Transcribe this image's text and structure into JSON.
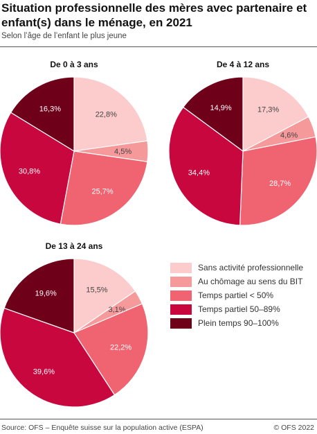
{
  "title": "Situation professionnelle des mères avec partenaire et enfant(s) dans le ménage, en 2021",
  "subtitle": "Selon l’âge de l’enfant le plus jeune",
  "source": "Source: OFS – Enquête suisse sur la population active (ESPA)",
  "copyright": "© OFS 2022",
  "colors": [
    "#fccbcb",
    "#f6999a",
    "#ef6470",
    "#c8073f",
    "#6e0019"
  ],
  "chart_data": [
    {
      "type": "pie",
      "title": "De 0 à 3 ans",
      "categories": [
        "Sans activité professionnelle",
        "Au chômage au sens du BIT",
        "Temps partiel < 50%",
        "Temps partiel 50–89%",
        "Plein temps 90–100%"
      ],
      "values": [
        22.8,
        4.5,
        25.7,
        30.8,
        16.3
      ],
      "labels": [
        "22,8%",
        "4,5%",
        "25,7%",
        "30,8%",
        "16,3%"
      ]
    },
    {
      "type": "pie",
      "title": "De 4 à 12 ans",
      "categories": [
        "Sans activité professionnelle",
        "Au chômage au sens du BIT",
        "Temps partiel < 50%",
        "Temps partiel 50–89%",
        "Plein temps 90–100%"
      ],
      "values": [
        17.3,
        4.6,
        28.7,
        34.4,
        14.9
      ],
      "labels": [
        "17,3%",
        "4,6%",
        "28,7%",
        "34,4%",
        "14,9%"
      ]
    },
    {
      "type": "pie",
      "title": "De 13 à 24 ans",
      "categories": [
        "Sans activité professionnelle",
        "Au chômage au sens du BIT",
        "Temps partiel < 50%",
        "Temps partiel 50–89%",
        "Plein temps 90–100%"
      ],
      "values": [
        15.5,
        3.1,
        22.2,
        39.6,
        19.6
      ],
      "labels": [
        "15,5%",
        "3,1%",
        "22,2%",
        "39,6%",
        "19,6%"
      ]
    }
  ],
  "legend": {
    "placement": "bottom-right",
    "items": [
      "Sans activité professionnelle",
      "Au chômage au sens du BIT",
      "Temps partiel < 50%",
      "Temps partiel 50–89%",
      "Plein temps 90–100%"
    ]
  }
}
